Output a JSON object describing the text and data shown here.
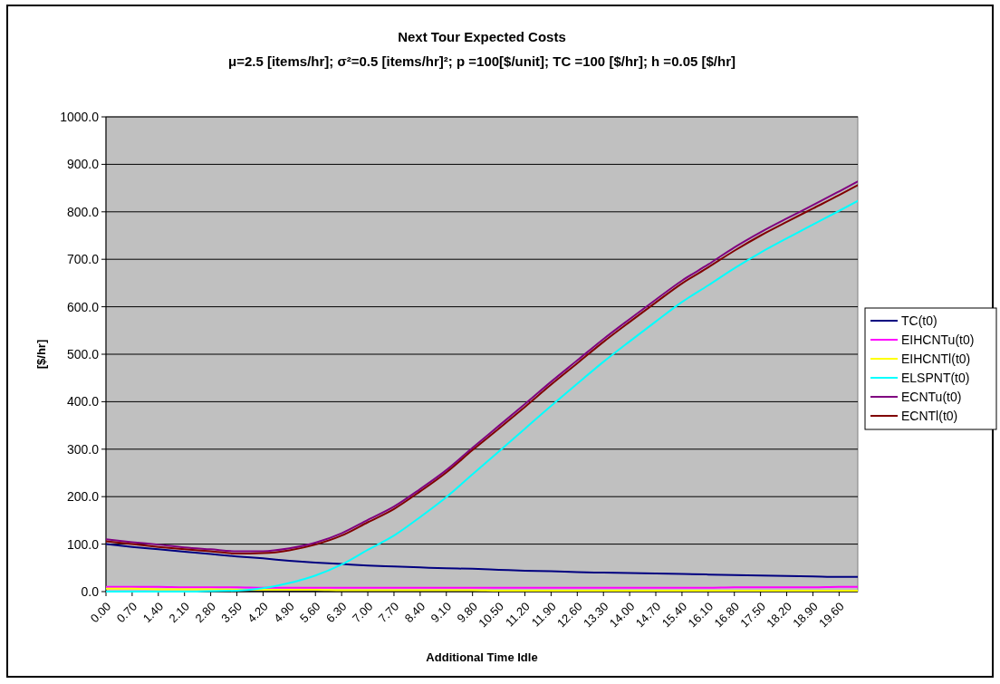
{
  "chart_data": {
    "type": "line",
    "title": "Next Tour Expected Costs",
    "subtitle": "μ=2.5 [items/hr]; σ²=0.5 [items/hr]²; p =100[$/unit]; TC =100 [$/hr]; h =0.05 [$/hr]",
    "xlabel": "Additional Time Idle",
    "ylabel": "[$/hr]",
    "x": [
      0,
      0.7,
      1.4,
      2.1,
      2.8,
      3.5,
      4.2,
      4.9,
      5.6,
      6.3,
      7,
      7.7,
      8.4,
      9.1,
      9.8,
      10.5,
      11.2,
      11.9,
      12.6,
      13.3,
      14,
      14.7,
      15.4,
      16.1,
      16.8,
      17.5,
      18.2,
      18.9,
      19.6,
      20.1
    ],
    "series": [
      {
        "name": "TC(t0)",
        "color": "#000080",
        "values": [
          100,
          94,
          89,
          84,
          79,
          74,
          70,
          65,
          61,
          58,
          55,
          53,
          51,
          49,
          48,
          46,
          44,
          43,
          41,
          40,
          39,
          38,
          37,
          36,
          35,
          34,
          33,
          32,
          31,
          31
        ]
      },
      {
        "name": "EIHCNTu(t0)",
        "color": "#ff00ff",
        "values": [
          10,
          10,
          10,
          9,
          9,
          9,
          8,
          8,
          8,
          8,
          8,
          8,
          8,
          8,
          8,
          8,
          8,
          8,
          8,
          8,
          8,
          8,
          8,
          8,
          9,
          9,
          9,
          9,
          10,
          10
        ]
      },
      {
        "name": "EIHCNTl(t0)",
        "color": "#ffff00",
        "values": [
          6,
          6,
          5,
          5,
          5,
          4,
          4,
          4,
          4,
          3,
          3,
          3,
          3,
          3,
          3,
          2,
          2,
          2,
          2,
          2,
          2,
          2,
          2,
          2,
          2,
          2,
          2,
          2,
          2,
          2
        ]
      },
      {
        "name": "ELSPNT(t0)",
        "color": "#00ffff",
        "values": [
          0,
          0,
          0,
          0,
          1,
          2,
          7,
          18,
          34,
          57,
          88,
          118,
          157,
          199,
          247,
          295,
          343,
          391,
          438,
          484,
          527,
          569,
          610,
          645,
          681,
          714,
          744,
          773,
          802,
          823
        ]
      },
      {
        "name": "ECNTu(t0)",
        "color": "#800080",
        "values": [
          110,
          104,
          99,
          93,
          89,
          85,
          85,
          91,
          103,
          123,
          151,
          179,
          216,
          256,
          303,
          349,
          395,
          442,
          487,
          532,
          574,
          615,
          655,
          689,
          725,
          757,
          786,
          814,
          843,
          864
        ]
      },
      {
        "name": "ECNTl(t0)",
        "color": "#800000",
        "values": [
          106,
          100,
          94,
          89,
          85,
          80,
          81,
          87,
          99,
          118,
          146,
          174,
          211,
          251,
          298,
          343,
          389,
          436,
          481,
          526,
          568,
          609,
          649,
          683,
          718,
          750,
          779,
          807,
          835,
          856
        ]
      }
    ],
    "xlim": [
      0,
      20.1
    ],
    "xticks": [
      {
        "value": 0,
        "label": "0.00"
      },
      {
        "value": 0.7,
        "label": "0.70"
      },
      {
        "value": 1.4,
        "label": "1.40"
      },
      {
        "value": 2.1,
        "label": "2.10"
      },
      {
        "value": 2.8,
        "label": "2.80"
      },
      {
        "value": 3.5,
        "label": "3.50"
      },
      {
        "value": 4.2,
        "label": "4.20"
      },
      {
        "value": 4.9,
        "label": "4.90"
      },
      {
        "value": 5.6,
        "label": "5.60"
      },
      {
        "value": 6.3,
        "label": "6.30"
      },
      {
        "value": 7,
        "label": "7.00"
      },
      {
        "value": 7.7,
        "label": "7.70"
      },
      {
        "value": 8.4,
        "label": "8.40"
      },
      {
        "value": 9.1,
        "label": "9.10"
      },
      {
        "value": 9.8,
        "label": "9.80"
      },
      {
        "value": 10.5,
        "label": "10.50"
      },
      {
        "value": 11.2,
        "label": "11.20"
      },
      {
        "value": 11.9,
        "label": "11.90"
      },
      {
        "value": 12.6,
        "label": "12.60"
      },
      {
        "value": 13.3,
        "label": "13.30"
      },
      {
        "value": 14,
        "label": "14.00"
      },
      {
        "value": 14.7,
        "label": "14.70"
      },
      {
        "value": 15.4,
        "label": "15.40"
      },
      {
        "value": 16.1,
        "label": "16.10"
      },
      {
        "value": 16.8,
        "label": "16.80"
      },
      {
        "value": 17.5,
        "label": "17.50"
      },
      {
        "value": 18.2,
        "label": "18.20"
      },
      {
        "value": 18.9,
        "label": "18.90"
      },
      {
        "value": 19.6,
        "label": "19.60"
      }
    ],
    "ylim": [
      0,
      1000
    ],
    "yticks": [
      {
        "value": 0,
        "label": "0.0"
      },
      {
        "value": 100,
        "label": "100.0"
      },
      {
        "value": 200,
        "label": "200.0"
      },
      {
        "value": 300,
        "label": "300.0"
      },
      {
        "value": 400,
        "label": "400.0"
      },
      {
        "value": 500,
        "label": "500.0"
      },
      {
        "value": 600,
        "label": "600.0"
      },
      {
        "value": 700,
        "label": "700.0"
      },
      {
        "value": 800,
        "label": "800.0"
      },
      {
        "value": 900,
        "label": "900.0"
      },
      {
        "value": 1000,
        "label": "1000.0"
      }
    ],
    "grid": "y",
    "legend": "right",
    "line_style": "solid",
    "marker": "none"
  }
}
